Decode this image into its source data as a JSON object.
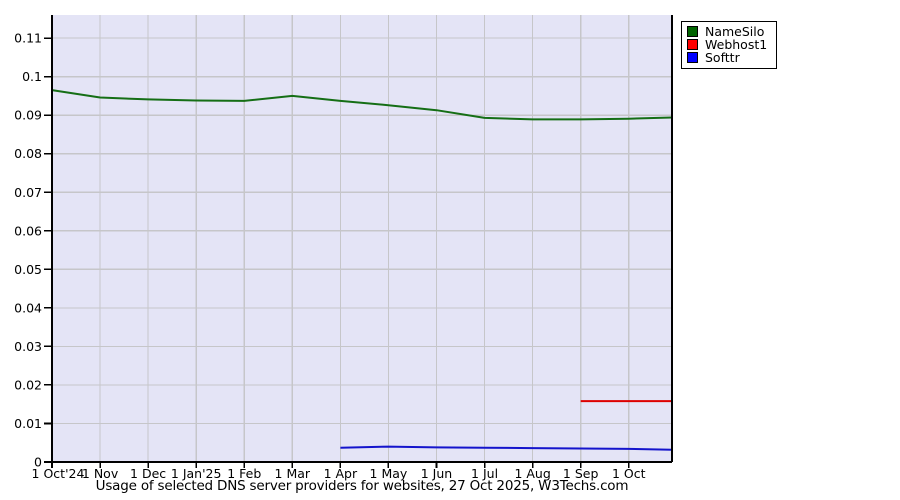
{
  "chart_data": {
    "type": "line",
    "title": "Usage of selected DNS server providers for websites, 27 Oct 2025, W3Techs.com",
    "x_tick_labels": [
      "1 Oct'24",
      "1 Nov",
      "1 Dec",
      "1 Jan'25",
      "1 Feb",
      "1 Mar",
      "1 Apr",
      "1 May",
      "1 Jun",
      "1 Jul",
      "1 Aug",
      "1 Sep",
      "1 Oct"
    ],
    "x_end_index": 12.9,
    "ylim": [
      0,
      0.116
    ],
    "ytick_values": [
      0,
      0.01,
      0.02,
      0.03,
      0.04,
      0.05,
      0.06,
      0.07,
      0.08,
      0.09,
      0.1,
      0.11
    ],
    "ytick_labels": [
      "0",
      "0.01",
      "0.02",
      "0.03",
      "0.04",
      "0.05",
      "0.06",
      "0.07",
      "0.08",
      "0.09",
      "0.1",
      "0.11"
    ],
    "grid": true,
    "legend_position": "outside-top-right",
    "series": [
      {
        "name": "NameSilo",
        "color": "#006400",
        "line_color": "#156e15",
        "x": [
          0,
          1,
          2,
          3,
          4,
          5,
          6,
          7,
          8,
          9,
          10,
          11,
          12,
          12.9
        ],
        "values": [
          0.0965,
          0.0946,
          0.0941,
          0.0938,
          0.0937,
          0.095,
          0.0937,
          0.0926,
          0.0913,
          0.0893,
          0.0889,
          0.0889,
          0.0891,
          0.0894
        ]
      },
      {
        "name": "Webhost1",
        "color": "#ff0000",
        "line_color": "#dd0000",
        "x": [
          11,
          12,
          12.9
        ],
        "values": [
          0.0158,
          0.0158,
          0.0158
        ]
      },
      {
        "name": "Softtr",
        "color": "#0000ff",
        "line_color": "#1414cc",
        "x": [
          6,
          7,
          8,
          9,
          10,
          11,
          12,
          12.9
        ],
        "values": [
          0.0037,
          0.004,
          0.0038,
          0.0037,
          0.0036,
          0.0035,
          0.0034,
          0.0032
        ]
      }
    ],
    "colors": {
      "page_bg": "#ffffff",
      "plot_bg": "#e4e4f6",
      "grid": "#c6c6c9",
      "axis": "#000000",
      "text": "#000000"
    }
  }
}
